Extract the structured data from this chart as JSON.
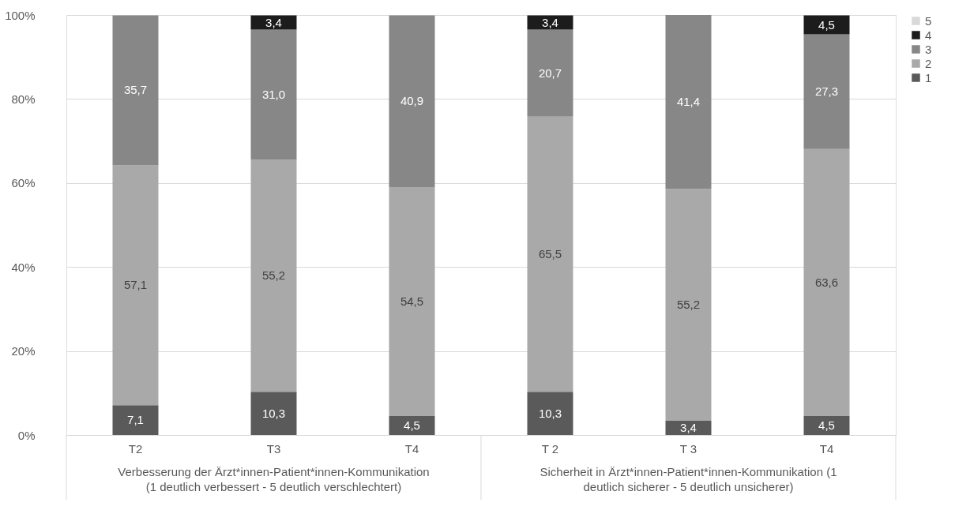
{
  "chart_data": {
    "type": "bar",
    "stacked": true,
    "categories": [
      "T2",
      "T3",
      "T4",
      "T 2",
      "T 3",
      "T4"
    ],
    "series": [
      {
        "name": "1",
        "color": "#5a5a5a",
        "values": [
          7.1,
          10.3,
          4.5,
          10.3,
          3.4,
          4.5
        ],
        "value_labels": [
          "7,1",
          "10,3",
          "4,5",
          "10,3",
          "3,4",
          "4,5"
        ]
      },
      {
        "name": "2",
        "color": "#a9a9a9",
        "values": [
          57.1,
          55.2,
          54.5,
          65.5,
          55.2,
          63.6
        ],
        "value_labels": [
          "57,1",
          "55,2",
          "54,5",
          "65,5",
          "55,2",
          "63,6"
        ]
      },
      {
        "name": "3",
        "color": "#878787",
        "values": [
          35.7,
          31.0,
          40.9,
          20.7,
          41.4,
          27.3
        ],
        "value_labels": [
          "35,7",
          "31,0",
          "40,9",
          "20,7",
          "41,4",
          "27,3"
        ]
      },
      {
        "name": "4",
        "color": "#1c1c1c",
        "values": [
          null,
          3.4,
          null,
          3.4,
          null,
          4.5
        ],
        "value_labels": [
          null,
          "3,4",
          null,
          "3,4",
          null,
          "4,5"
        ]
      },
      {
        "name": "5",
        "color": "#d9d9d9",
        "values": [
          null,
          null,
          null,
          null,
          null,
          null
        ],
        "value_labels": [
          null,
          null,
          null,
          null,
          null,
          null
        ]
      }
    ],
    "ylim": [
      0,
      100
    ],
    "yticks": [
      {
        "value": 0,
        "label": "0%"
      },
      {
        "value": 20,
        "label": "20%"
      },
      {
        "value": 40,
        "label": "40%"
      },
      {
        "value": 60,
        "label": "60%"
      },
      {
        "value": 80,
        "label": "80%"
      },
      {
        "value": 100,
        "label": "100%"
      }
    ],
    "grid": "y",
    "legend": "right",
    "annotations": [
      "Verbesserung der Ärzt*innen-Patient*innen-Kommunikation\n(1 deutlich verbessert -  5 deutlich verschlechtert)",
      "Sicherheit in Ärzt*innen-Patient*innen-Kommunikation (1\ndeutlich sicherer - 5 deutlich unsicherer)"
    ]
  }
}
